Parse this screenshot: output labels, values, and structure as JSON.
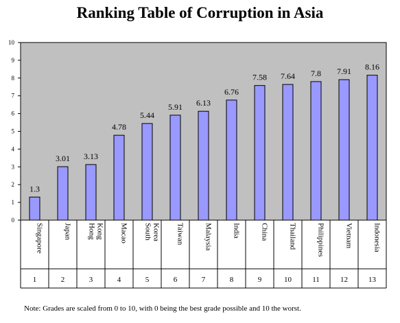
{
  "title": "Ranking Table of Corruption in Asia",
  "note": "Note: Grades are scaled from 0 to 10, with 0 being the best grade possible and 10 the worst.",
  "colors": {
    "plot_bg": "#c0c0c0",
    "bar_fill": "#9999ff",
    "bar_stroke": "#000000"
  },
  "chart_data": {
    "type": "bar",
    "title": "Ranking Table of Corruption in Asia",
    "categories": [
      [
        "Singapore"
      ],
      [
        "Japan"
      ],
      [
        "Hong",
        "Kong"
      ],
      [
        "Macao"
      ],
      [
        "South",
        "Korea"
      ],
      [
        "Taiwan"
      ],
      [
        "Malaysia"
      ],
      [
        "India"
      ],
      [
        "China"
      ],
      [
        "Thailand"
      ],
      [
        "Philippines"
      ],
      [
        "Vietnam"
      ],
      [
        "Indonesia"
      ]
    ],
    "ranks": [
      "1",
      "2",
      "3",
      "4",
      "5",
      "6",
      "7",
      "8",
      "9",
      "10",
      "11",
      "12",
      "13"
    ],
    "values": [
      1.3,
      3.01,
      3.13,
      4.78,
      5.44,
      5.91,
      6.13,
      6.76,
      7.58,
      7.64,
      7.8,
      7.91,
      8.16
    ],
    "value_labels": [
      "1.3",
      "3.01",
      "3.13",
      "4.78",
      "5.44",
      "5.91",
      "6.13",
      "6.76",
      "7.58",
      "7.64",
      "7.8",
      "7.91",
      "8.16"
    ],
    "ylim": [
      0,
      10
    ],
    "yticks": [
      "0",
      "1",
      "2",
      "3",
      "4",
      "5",
      "6",
      "7",
      "8",
      "9",
      "10"
    ],
    "grid": false,
    "legend": "none",
    "xlabel": "",
    "ylabel": ""
  }
}
